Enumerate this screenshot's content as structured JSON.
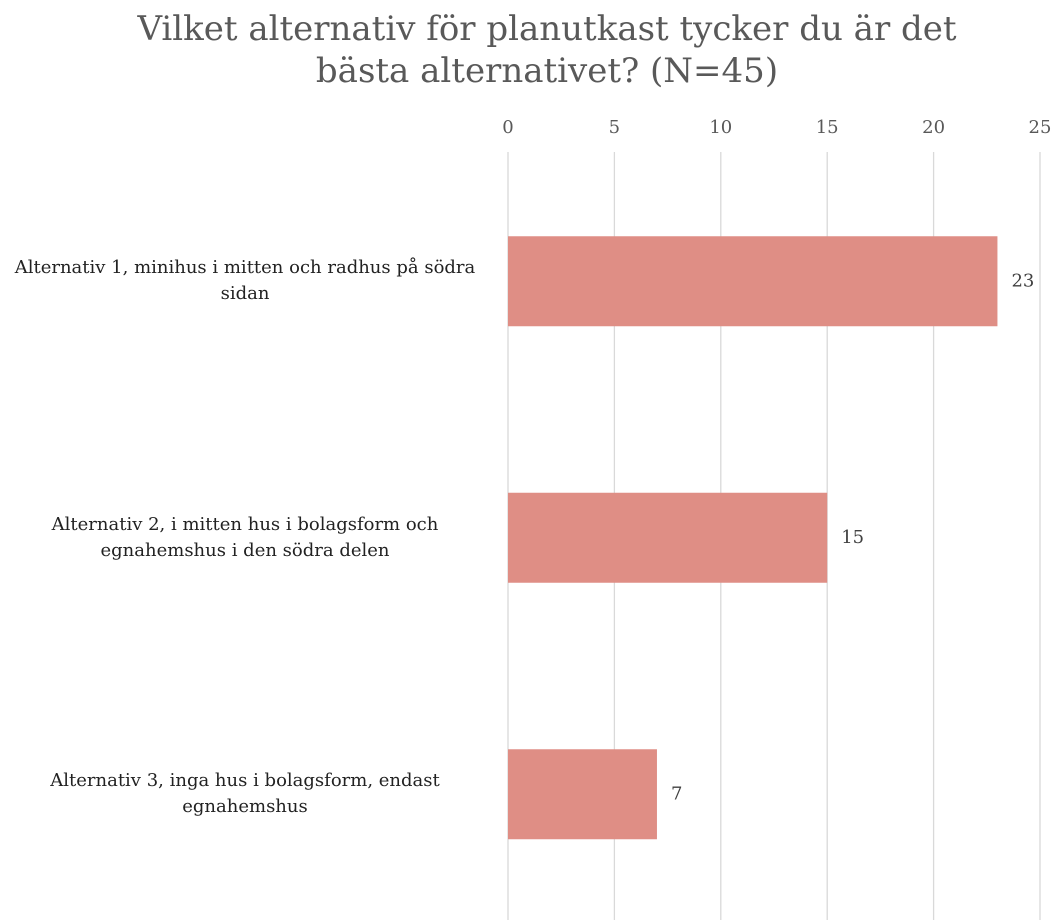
{
  "chart_data": {
    "type": "bar",
    "orientation": "horizontal",
    "title": "Vilket alternativ för planutkast tycker du är det bästa alternativet? (N=45)",
    "categories": [
      "Alternativ 1, minihus i mitten och radhus på södra sidan",
      "Alternativ 2, i mitten hus i bolagsform och egnahemshus i den södra delen",
      "Alternativ 3, inga hus i bolagsform, endast egnahemshus"
    ],
    "values": [
      23,
      15,
      7
    ],
    "color": "#df8e85",
    "xlim": [
      0,
      25
    ],
    "xticks": [
      0,
      5,
      10,
      15,
      20,
      25
    ],
    "grid": true
  }
}
